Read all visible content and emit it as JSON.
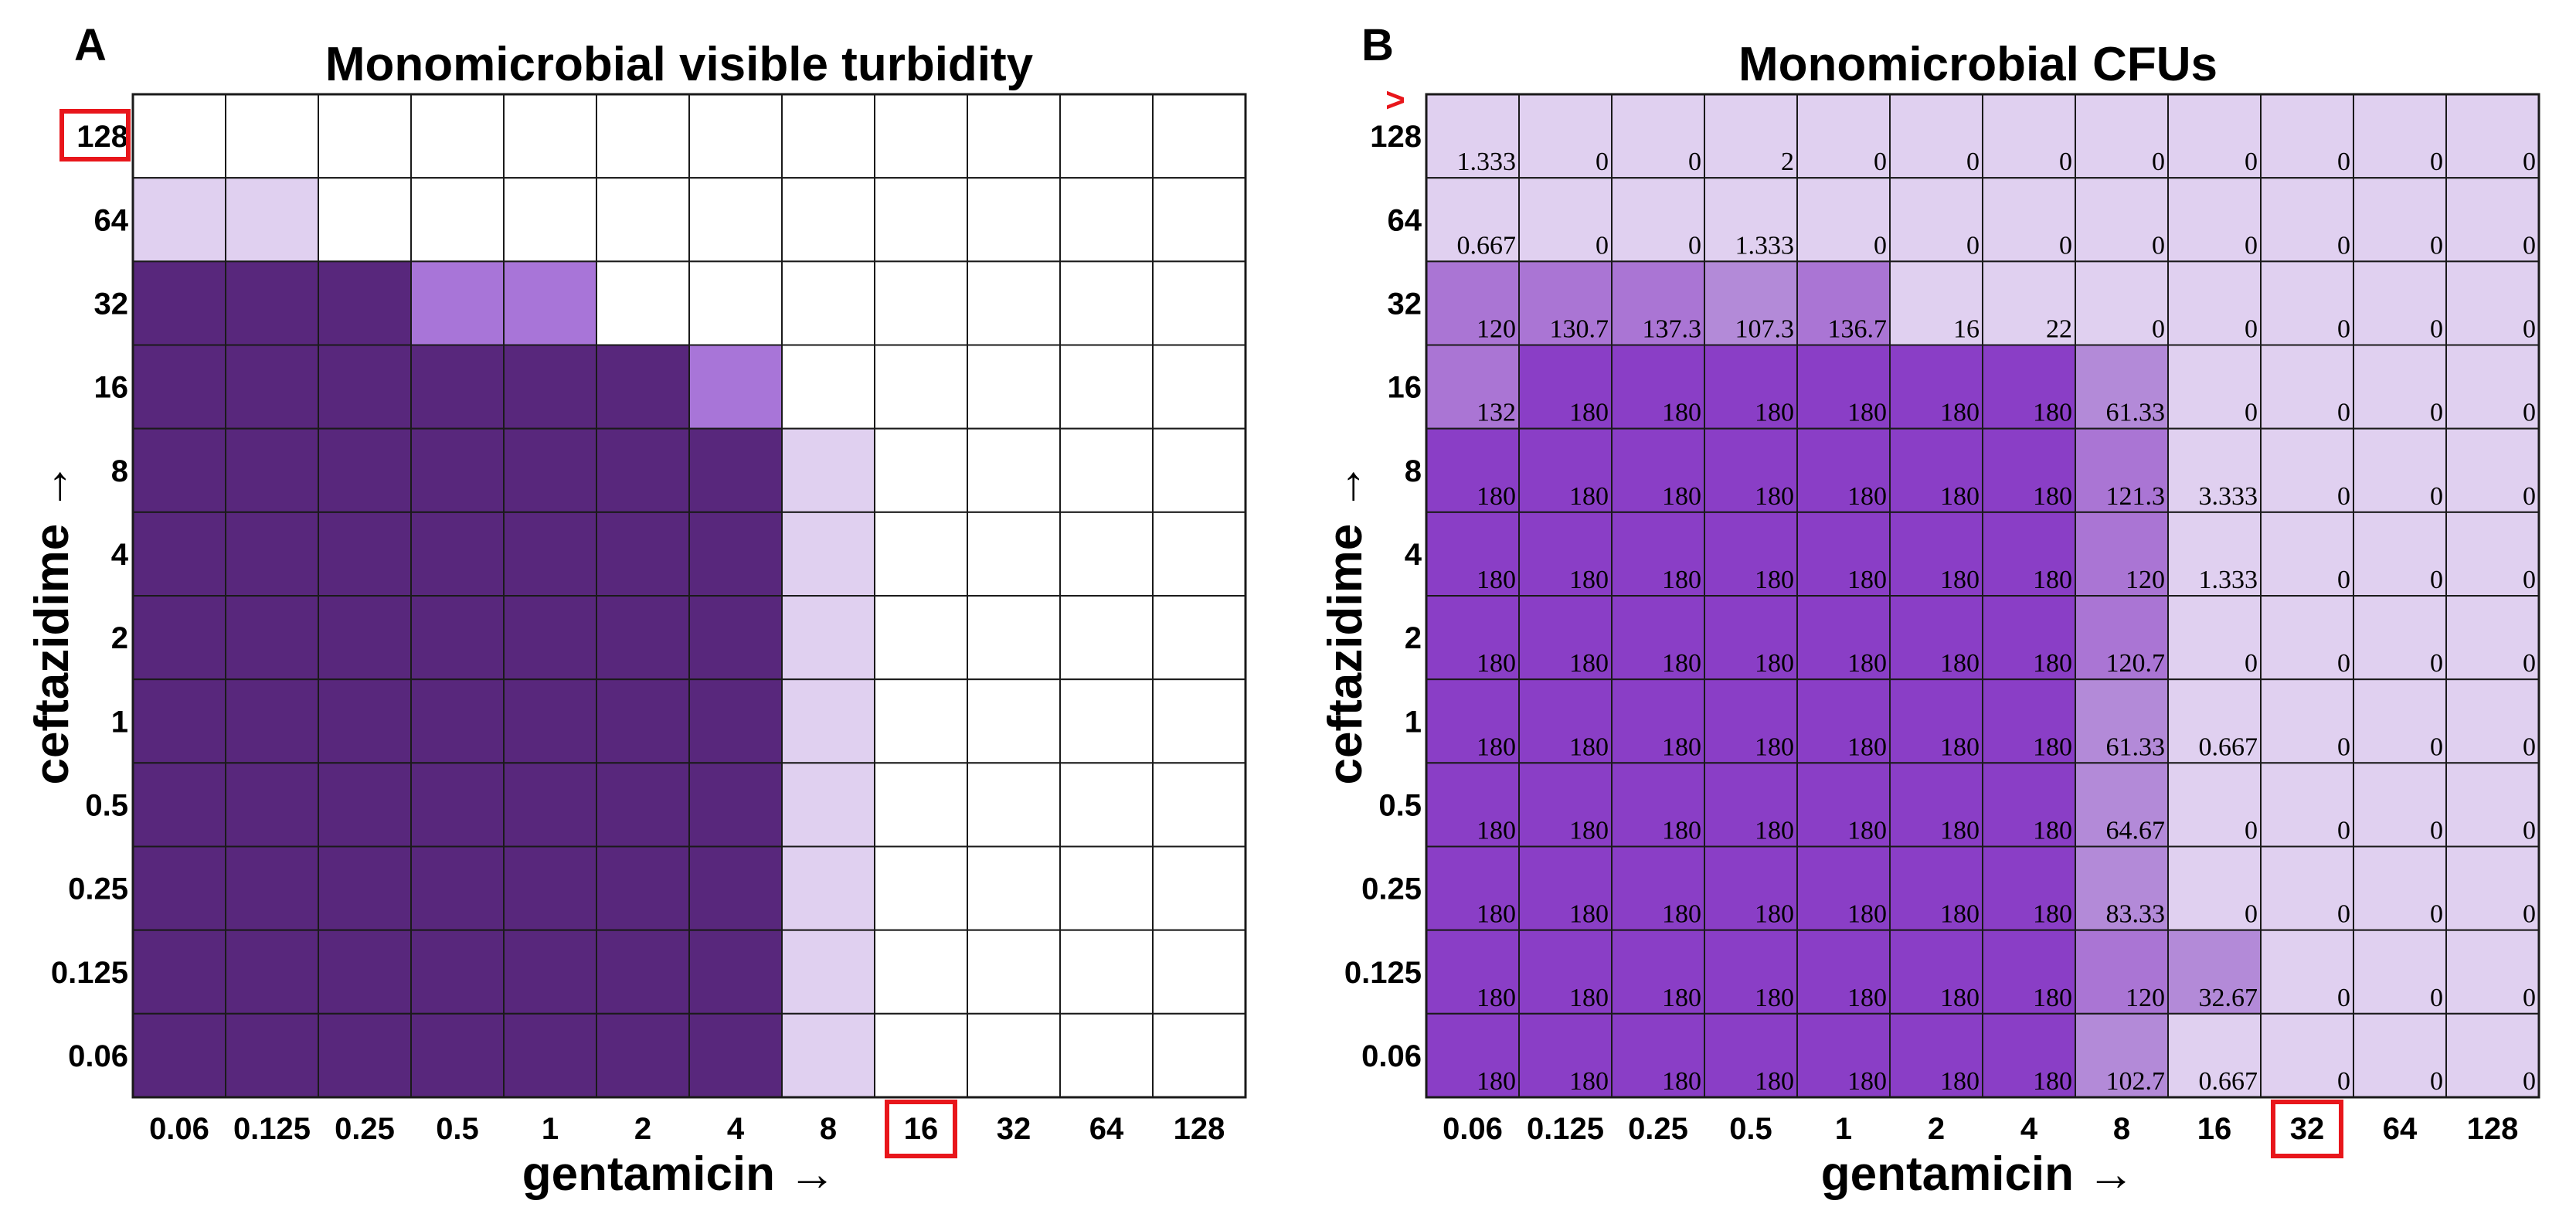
{
  "colors": {
    "white": "#ffffff",
    "light": "#e0d0f0",
    "medium": "#a875d8",
    "dark": "#58277c",
    "cfu_medium": "#b38ad8",
    "cfu_mid2": "#aa75d4",
    "cfu_dark": "#8a3ec6",
    "highlight": "#e8161b"
  },
  "chart_data": [
    {
      "panel": "A",
      "type": "heatmap",
      "title": "Monomicrobial visible turbidity",
      "xlabel": "gentamicin →",
      "ylabel": "ceftazidime →",
      "x_categories": [
        "0.06",
        "0.125",
        "0.25",
        "0.5",
        "1",
        "2",
        "4",
        "8",
        "16",
        "32",
        "64",
        "128"
      ],
      "y_categories": [
        "128",
        "64",
        "32",
        "16",
        "8",
        "4",
        "2",
        "1",
        "0.5",
        "0.25",
        "0.125",
        "0.06"
      ],
      "highlighted_x": "16",
      "highlighted_y": "128",
      "levels": [
        [
          0,
          0,
          0,
          0,
          0,
          0,
          0,
          0,
          0,
          0,
          0,
          0
        ],
        [
          1,
          1,
          0,
          0,
          0,
          0,
          0,
          0,
          0,
          0,
          0,
          0
        ],
        [
          3,
          3,
          3,
          2,
          2,
          0,
          0,
          0,
          0,
          0,
          0,
          0
        ],
        [
          3,
          3,
          3,
          3,
          3,
          3,
          2,
          0,
          0,
          0,
          0,
          0
        ],
        [
          3,
          3,
          3,
          3,
          3,
          3,
          3,
          1,
          0,
          0,
          0,
          0
        ],
        [
          3,
          3,
          3,
          3,
          3,
          3,
          3,
          1,
          0,
          0,
          0,
          0
        ],
        [
          3,
          3,
          3,
          3,
          3,
          3,
          3,
          1,
          0,
          0,
          0,
          0
        ],
        [
          3,
          3,
          3,
          3,
          3,
          3,
          3,
          1,
          0,
          0,
          0,
          0
        ],
        [
          3,
          3,
          3,
          3,
          3,
          3,
          3,
          1,
          0,
          0,
          0,
          0
        ],
        [
          3,
          3,
          3,
          3,
          3,
          3,
          3,
          1,
          0,
          0,
          0,
          0
        ],
        [
          3,
          3,
          3,
          3,
          3,
          3,
          3,
          1,
          0,
          0,
          0,
          0
        ],
        [
          3,
          3,
          3,
          3,
          3,
          3,
          3,
          1,
          0,
          0,
          0,
          0
        ]
      ]
    },
    {
      "panel": "B",
      "type": "heatmap",
      "title": "Monomicrobial CFUs",
      "xlabel": "gentamicin →",
      "ylabel": "ceftazidime →",
      "x_categories": [
        "0.06",
        "0.125",
        "0.25",
        "0.5",
        "1",
        "2",
        "4",
        "8",
        "16",
        "32",
        "64",
        "128"
      ],
      "y_categories": [
        "128",
        "64",
        "32",
        "16",
        "8",
        "4",
        "2",
        "1",
        "0.5",
        "0.25",
        "0.125",
        "0.06"
      ],
      "greater_than_label": ">",
      "highlighted_x": "32",
      "values": [
        [
          "1.333",
          "0",
          "0",
          "2",
          "0",
          "0",
          "0",
          "0",
          "0",
          "0",
          "0",
          "0"
        ],
        [
          "0.667",
          "0",
          "0",
          "1.333",
          "0",
          "0",
          "0",
          "0",
          "0",
          "0",
          "0",
          "0"
        ],
        [
          "120",
          "130.7",
          "137.3",
          "107.3",
          "136.7",
          "16",
          "22",
          "0",
          "0",
          "0",
          "0",
          "0"
        ],
        [
          "132",
          "180",
          "180",
          "180",
          "180",
          "180",
          "180",
          "61.33",
          "0",
          "0",
          "0",
          "0"
        ],
        [
          "180",
          "180",
          "180",
          "180",
          "180",
          "180",
          "180",
          "121.3",
          "3.333",
          "0",
          "0",
          "0"
        ],
        [
          "180",
          "180",
          "180",
          "180",
          "180",
          "180",
          "180",
          "120",
          "1.333",
          "0",
          "0",
          "0"
        ],
        [
          "180",
          "180",
          "180",
          "180",
          "180",
          "180",
          "180",
          "120.7",
          "0",
          "0",
          "0",
          "0"
        ],
        [
          "180",
          "180",
          "180",
          "180",
          "180",
          "180",
          "180",
          "61.33",
          "0.667",
          "0",
          "0",
          "0"
        ],
        [
          "180",
          "180",
          "180",
          "180",
          "180",
          "180",
          "180",
          "64.67",
          "0",
          "0",
          "0",
          "0"
        ],
        [
          "180",
          "180",
          "180",
          "180",
          "180",
          "180",
          "180",
          "83.33",
          "0",
          "0",
          "0",
          "0"
        ],
        [
          "180",
          "180",
          "180",
          "180",
          "180",
          "180",
          "180",
          "120",
          "32.67",
          "0",
          "0",
          "0"
        ],
        [
          "180",
          "180",
          "180",
          "180",
          "180",
          "180",
          "180",
          "102.7",
          "0.667",
          "0",
          "0",
          "0"
        ]
      ]
    }
  ]
}
